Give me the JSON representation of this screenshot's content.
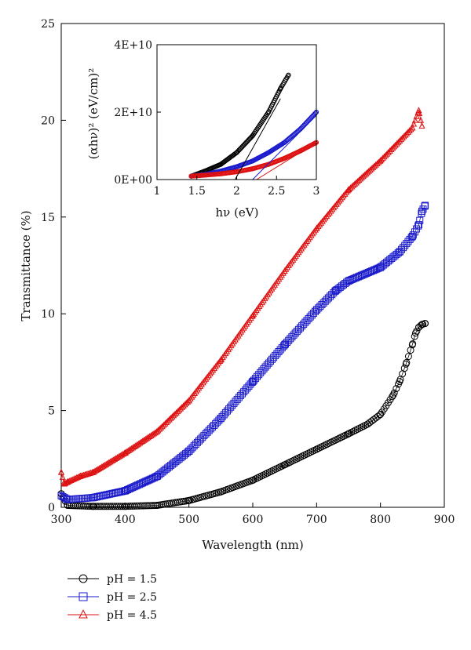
{
  "chart_data": [
    {
      "type": "scatter",
      "title": "",
      "xlabel": "Wavelength (nm)",
      "ylabel": "Transmittance (%)",
      "xlim": [
        300,
        900
      ],
      "ylim": [
        0,
        25
      ],
      "xticks": [
        300,
        400,
        500,
        600,
        700,
        800,
        900
      ],
      "yticks": [
        0,
        5,
        10,
        15,
        20,
        25
      ],
      "grid": false,
      "legend": "bottom-left",
      "series": [
        {
          "name": "pH = 1.5",
          "color": "#000000",
          "marker": "circle",
          "x": [
            300,
            310,
            350,
            400,
            450,
            500,
            550,
            600,
            650,
            700,
            750,
            780,
            800,
            820,
            830,
            840,
            850,
            855,
            860,
            865,
            870
          ],
          "y": [
            0.7,
            0.1,
            0.05,
            0.05,
            0.1,
            0.35,
            0.8,
            1.4,
            2.2,
            3.0,
            3.8,
            4.3,
            4.8,
            5.8,
            6.5,
            7.4,
            8.4,
            9.0,
            9.3,
            9.45,
            9.5
          ]
        },
        {
          "name": "pH = 2.5",
          "color": "#1a1acc",
          "marker": "square",
          "x": [
            300,
            310,
            350,
            400,
            450,
            500,
            550,
            600,
            650,
            700,
            730,
            750,
            800,
            830,
            850,
            860,
            865,
            870
          ],
          "y": [
            0.6,
            0.4,
            0.5,
            0.85,
            1.6,
            2.9,
            4.6,
            6.5,
            8.4,
            10.2,
            11.2,
            11.7,
            12.4,
            13.2,
            14.0,
            14.6,
            15.3,
            15.6
          ]
        },
        {
          "name": "pH = 4.5",
          "color": "#dd1111",
          "marker": "triangle",
          "x": [
            300,
            305,
            310,
            330,
            350,
            400,
            450,
            500,
            550,
            600,
            650,
            700,
            750,
            800,
            850,
            860,
            865
          ],
          "y": [
            1.8,
            1.2,
            1.3,
            1.6,
            1.8,
            2.8,
            3.9,
            5.5,
            7.6,
            9.9,
            12.2,
            14.4,
            16.4,
            17.9,
            19.6,
            20.5,
            19.7
          ]
        }
      ]
    },
    {
      "type": "scatter",
      "title": "",
      "xlabel": "hν (eV)",
      "ylabel": "(αhν)² (eV/cm)²",
      "xlim": [
        1,
        3
      ],
      "ylim": [
        0,
        40000000000
      ],
      "xticks": [
        1,
        1.5,
        2,
        2.5,
        3
      ],
      "xtick_labels": [
        "1",
        "1.5",
        "2",
        "2.5",
        "3"
      ],
      "yticks": [
        0,
        20000000000,
        40000000000
      ],
      "ytick_labels": [
        "0E+00",
        "2E+10",
        "4E+10"
      ],
      "grid": false,
      "series": [
        {
          "name": "pH = 1.5",
          "color": "#000000",
          "x": [
            1.43,
            1.6,
            1.8,
            2.0,
            2.2,
            2.4,
            2.55,
            2.65
          ],
          "y": [
            1000000000,
            2500000000,
            4500000000,
            8000000000,
            13000000000,
            20000000000,
            27000000000,
            31000000000
          ],
          "fit": {
            "x": [
              1.98,
              2.55
            ],
            "y": [
              0,
              24000000000
            ]
          }
        },
        {
          "name": "pH = 2.5",
          "color": "#1a1acc",
          "x": [
            1.43,
            1.6,
            1.8,
            2.0,
            2.2,
            2.4,
            2.6,
            2.8,
            3.0
          ],
          "y": [
            1000000000,
            1500000000,
            2500000000,
            3800000000,
            5500000000,
            8000000000,
            11000000000,
            15000000000,
            20000000000
          ],
          "fit": {
            "x": [
              2.2,
              3.0
            ],
            "y": [
              0,
              19000000000
            ]
          }
        },
        {
          "name": "pH = 4.5",
          "color": "#dd1111",
          "x": [
            1.43,
            1.6,
            1.8,
            2.0,
            2.2,
            2.4,
            2.6,
            2.8,
            3.0
          ],
          "y": [
            1000000000,
            1300000000,
            1700000000,
            2300000000,
            3200000000,
            4500000000,
            6300000000,
            8500000000,
            11000000000
          ],
          "fit": {
            "x": [
              2.25,
              3.0
            ],
            "y": [
              0,
              11000000000
            ]
          }
        }
      ]
    }
  ]
}
